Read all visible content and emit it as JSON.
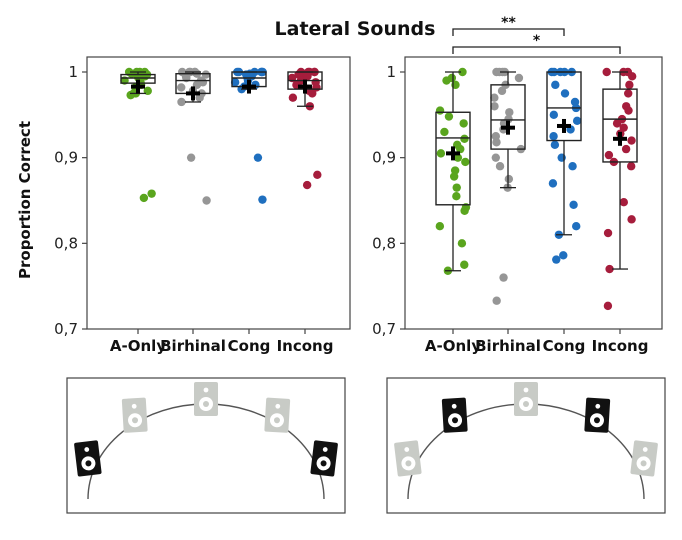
{
  "title": "Lateral Sounds",
  "ylabel": "Proportion Correct",
  "chart_data": [
    {
      "type": "box",
      "panel": "left",
      "categories": [
        "A-Only",
        "Birhinal",
        "Cong",
        "Incong"
      ],
      "yticks": [
        "0,7",
        "0,8",
        "0,9",
        "1"
      ],
      "ylim": [
        0.7,
        1.0
      ],
      "series": [
        {
          "name": "A-Only",
          "color": "#5aa51e",
          "q1": 0.987,
          "median": 0.993,
          "q3": 0.997,
          "whisker_low": 0.975,
          "whisker_high": 1.0,
          "mean": 0.983,
          "points": [
            1.0,
            1.0,
            1.0,
            1.0,
            0.998,
            0.997,
            0.995,
            0.994,
            0.993,
            0.993,
            0.99,
            0.988,
            0.985,
            0.982,
            0.978,
            0.975,
            0.975,
            0.973,
            0.858,
            0.853
          ]
        },
        {
          "name": "Birhinal",
          "color": "#969696",
          "q1": 0.975,
          "median": 0.99,
          "q3": 0.998,
          "whisker_low": 0.965,
          "whisker_high": 1.0,
          "mean": 0.975,
          "points": [
            1.0,
            1.0,
            1.0,
            1.0,
            1.0,
            0.998,
            0.997,
            0.995,
            0.993,
            0.99,
            0.988,
            0.985,
            0.982,
            0.978,
            0.975,
            0.97,
            0.965,
            0.9,
            0.85
          ]
        },
        {
          "name": "Cong",
          "color": "#1f6fbf",
          "q1": 0.983,
          "median": 0.993,
          "q3": 1.0,
          "whisker_low": 0.98,
          "whisker_high": 1.0,
          "mean": 0.983,
          "points": [
            1.0,
            1.0,
            1.0,
            1.0,
            1.0,
            1.0,
            0.998,
            0.997,
            0.995,
            0.993,
            0.99,
            0.988,
            0.985,
            0.983,
            0.98,
            0.9,
            0.851
          ]
        },
        {
          "name": "Incong",
          "color": "#a61d3c",
          "q1": 0.98,
          "median": 0.99,
          "q3": 1.0,
          "whisker_low": 0.96,
          "whisker_high": 1.0,
          "mean": 0.983,
          "points": [
            1.0,
            1.0,
            1.0,
            1.0,
            1.0,
            0.998,
            0.997,
            0.995,
            0.993,
            0.99,
            0.988,
            0.985,
            0.982,
            0.978,
            0.975,
            0.97,
            0.96,
            0.88,
            0.868
          ]
        }
      ]
    },
    {
      "type": "box",
      "panel": "right",
      "categories": [
        "A-Only",
        "Birhinal",
        "Cong",
        "Incong"
      ],
      "yticks": [
        "0,7",
        "0,8",
        "0,9",
        "1"
      ],
      "ylim": [
        0.7,
        1.0
      ],
      "significance": [
        {
          "from": "A-Only",
          "to": "Cong",
          "label": "**"
        },
        {
          "from": "A-Only",
          "to": "Incong",
          "label": "*"
        }
      ],
      "series": [
        {
          "name": "A-Only",
          "color": "#5aa51e",
          "q1": 0.845,
          "median": 0.923,
          "q3": 0.953,
          "whisker_low": 0.768,
          "whisker_high": 1.0,
          "mean": 0.905,
          "points": [
            1.0,
            0.993,
            0.99,
            0.985,
            0.955,
            0.948,
            0.94,
            0.93,
            0.922,
            0.915,
            0.91,
            0.905,
            0.9,
            0.895,
            0.885,
            0.878,
            0.865,
            0.855,
            0.842,
            0.838,
            0.82,
            0.8,
            0.775,
            0.768
          ]
        },
        {
          "name": "Birhinal",
          "color": "#969696",
          "q1": 0.91,
          "median": 0.944,
          "q3": 0.985,
          "whisker_low": 0.865,
          "whisker_high": 1.0,
          "mean": 0.935,
          "points": [
            1.0,
            1.0,
            1.0,
            1.0,
            0.993,
            0.985,
            0.978,
            0.97,
            0.96,
            0.953,
            0.945,
            0.94,
            0.933,
            0.925,
            0.918,
            0.91,
            0.9,
            0.89,
            0.875,
            0.865,
            0.76,
            0.733
          ]
        },
        {
          "name": "Cong",
          "color": "#1f6fbf",
          "q1": 0.92,
          "median": 0.958,
          "q3": 1.0,
          "whisker_low": 0.81,
          "whisker_high": 1.0,
          "mean": 0.937,
          "points": [
            1.0,
            1.0,
            1.0,
            1.0,
            1.0,
            0.985,
            0.975,
            0.965,
            0.958,
            0.95,
            0.943,
            0.933,
            0.925,
            0.915,
            0.9,
            0.89,
            0.87,
            0.845,
            0.82,
            0.81,
            0.786,
            0.781
          ]
        },
        {
          "name": "Incong",
          "color": "#a61d3c",
          "q1": 0.895,
          "median": 0.945,
          "q3": 0.98,
          "whisker_low": 0.77,
          "whisker_high": 1.0,
          "mean": 0.922,
          "points": [
            1.0,
            1.0,
            1.0,
            0.995,
            0.985,
            0.975,
            0.96,
            0.955,
            0.945,
            0.94,
            0.935,
            0.928,
            0.92,
            0.91,
            0.903,
            0.895,
            0.89,
            0.848,
            0.828,
            0.812,
            0.77,
            0.727
          ]
        }
      ]
    }
  ],
  "diagrams": [
    {
      "panel": "left",
      "speakers": [
        "active",
        "inactive",
        "inactive",
        "inactive",
        "active"
      ]
    },
    {
      "panel": "right",
      "speakers": [
        "inactive",
        "active",
        "inactive",
        "active",
        "inactive"
      ]
    }
  ]
}
